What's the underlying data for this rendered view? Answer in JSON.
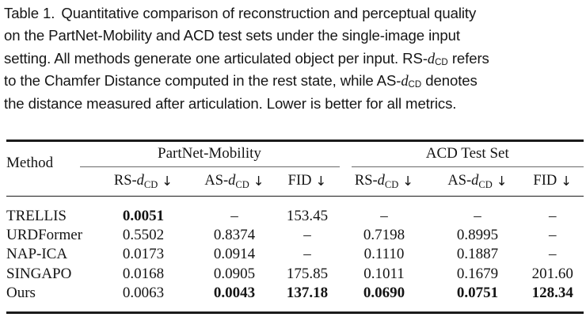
{
  "caption": {
    "lines": [
      [
        {
          "t": "Table 1.",
          "s": "label"
        },
        {
          "t": "Quantitative comparison of reconstruction and perceptual quality",
          "s": "n"
        }
      ],
      [
        {
          "t": "on the PartNet-Mobility and ACD test sets under the single-image input",
          "s": "n"
        }
      ],
      [
        {
          "t": "setting. All methods generate one articulated object per input. RS-",
          "s": "n"
        },
        {
          "t": "d",
          "s": "i"
        },
        {
          "t": "CD",
          "s": "sub"
        },
        {
          "t": " refers",
          "s": "n"
        }
      ],
      [
        {
          "t": "to the Chamfer Distance computed in the rest state, while AS-",
          "s": "n"
        },
        {
          "t": "d",
          "s": "i"
        },
        {
          "t": "CD",
          "s": "sub"
        },
        {
          "t": " denotes",
          "s": "n"
        }
      ],
      [
        {
          "t": "the distance measured after articulation. Lower is better for all metrics.",
          "s": "n"
        }
      ]
    ]
  },
  "table": {
    "method_header": "Method",
    "groups": [
      {
        "label": "PartNet-Mobility"
      },
      {
        "label": "ACD Test Set"
      }
    ],
    "metric_headers": [
      {
        "prefix": "RS-",
        "var": "d",
        "sub": "CD",
        "arrow": "↓"
      },
      {
        "prefix": "AS-",
        "var": "d",
        "sub": "CD",
        "arrow": "↓"
      },
      {
        "prefix": "FID",
        "var": "",
        "sub": "",
        "arrow": "↓"
      },
      {
        "prefix": "RS-",
        "var": "d",
        "sub": "CD",
        "arrow": "↓"
      },
      {
        "prefix": "AS-",
        "var": "d",
        "sub": "CD",
        "arrow": "↓"
      },
      {
        "prefix": "FID",
        "var": "",
        "sub": "",
        "arrow": "↓"
      }
    ],
    "rows": [
      {
        "method": "TRELLIS",
        "cells": [
          {
            "v": "0.0051",
            "bold": true
          },
          {
            "v": "–",
            "bold": false
          },
          {
            "v": "153.45",
            "bold": false
          },
          {
            "v": "–",
            "bold": false
          },
          {
            "v": "–",
            "bold": false
          },
          {
            "v": "–",
            "bold": false
          }
        ]
      },
      {
        "method": "URDFormer",
        "cells": [
          {
            "v": "0.5502",
            "bold": false
          },
          {
            "v": "0.8374",
            "bold": false
          },
          {
            "v": "–",
            "bold": false
          },
          {
            "v": "0.7198",
            "bold": false
          },
          {
            "v": "0.8995",
            "bold": false
          },
          {
            "v": "–",
            "bold": false
          }
        ]
      },
      {
        "method": "NAP-ICA",
        "cells": [
          {
            "v": "0.0173",
            "bold": false
          },
          {
            "v": "0.0914",
            "bold": false
          },
          {
            "v": "–",
            "bold": false
          },
          {
            "v": "0.1110",
            "bold": false
          },
          {
            "v": "0.1887",
            "bold": false
          },
          {
            "v": "–",
            "bold": false
          }
        ]
      },
      {
        "method": "SINGAPO",
        "cells": [
          {
            "v": "0.0168",
            "bold": false
          },
          {
            "v": "0.0905",
            "bold": false
          },
          {
            "v": "175.85",
            "bold": false
          },
          {
            "v": "0.1011",
            "bold": false
          },
          {
            "v": "0.1679",
            "bold": false
          },
          {
            "v": "201.60",
            "bold": false
          }
        ]
      },
      {
        "method": "Ours",
        "cells": [
          {
            "v": "0.0063",
            "bold": false
          },
          {
            "v": "0.0043",
            "bold": true
          },
          {
            "v": "137.18",
            "bold": true
          },
          {
            "v": "0.0690",
            "bold": true
          },
          {
            "v": "0.0751",
            "bold": true
          },
          {
            "v": "128.34",
            "bold": true
          }
        ]
      }
    ]
  },
  "colors": {
    "background": "#ffffff",
    "text": "#141414",
    "heavy_rule": "#1b1b1b",
    "cmid_rule": "#6a6a6a"
  }
}
